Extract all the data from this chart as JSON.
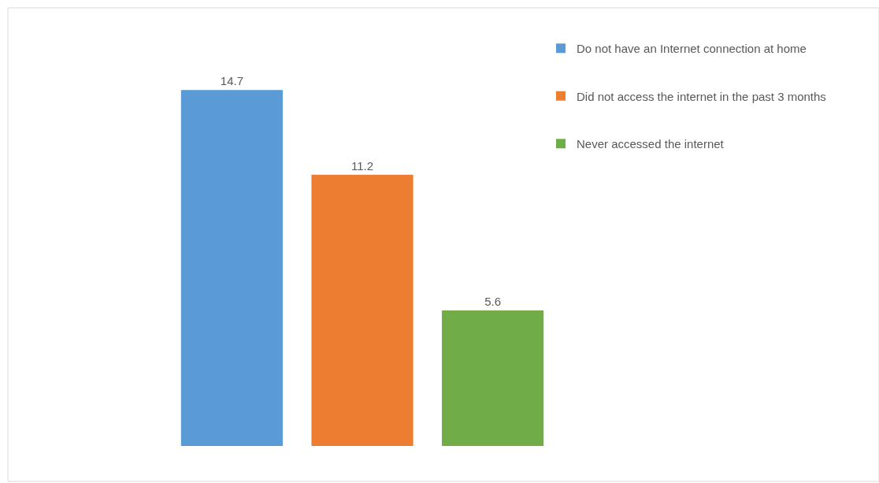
{
  "chart_data": {
    "type": "bar",
    "categories": [
      null
    ],
    "series": [
      {
        "name": "Do not have an Internet connection at home",
        "color": "#5b9bd5",
        "values": [
          14.7
        ]
      },
      {
        "name": "Did not access the internet in the past 3 months",
        "color": "#ed7d31",
        "values": [
          11.2
        ]
      },
      {
        "name": "Never accessed the internet",
        "color": "#70ad47",
        "values": [
          5.6
        ]
      }
    ],
    "data_labels": true,
    "legend": "top right"
  }
}
